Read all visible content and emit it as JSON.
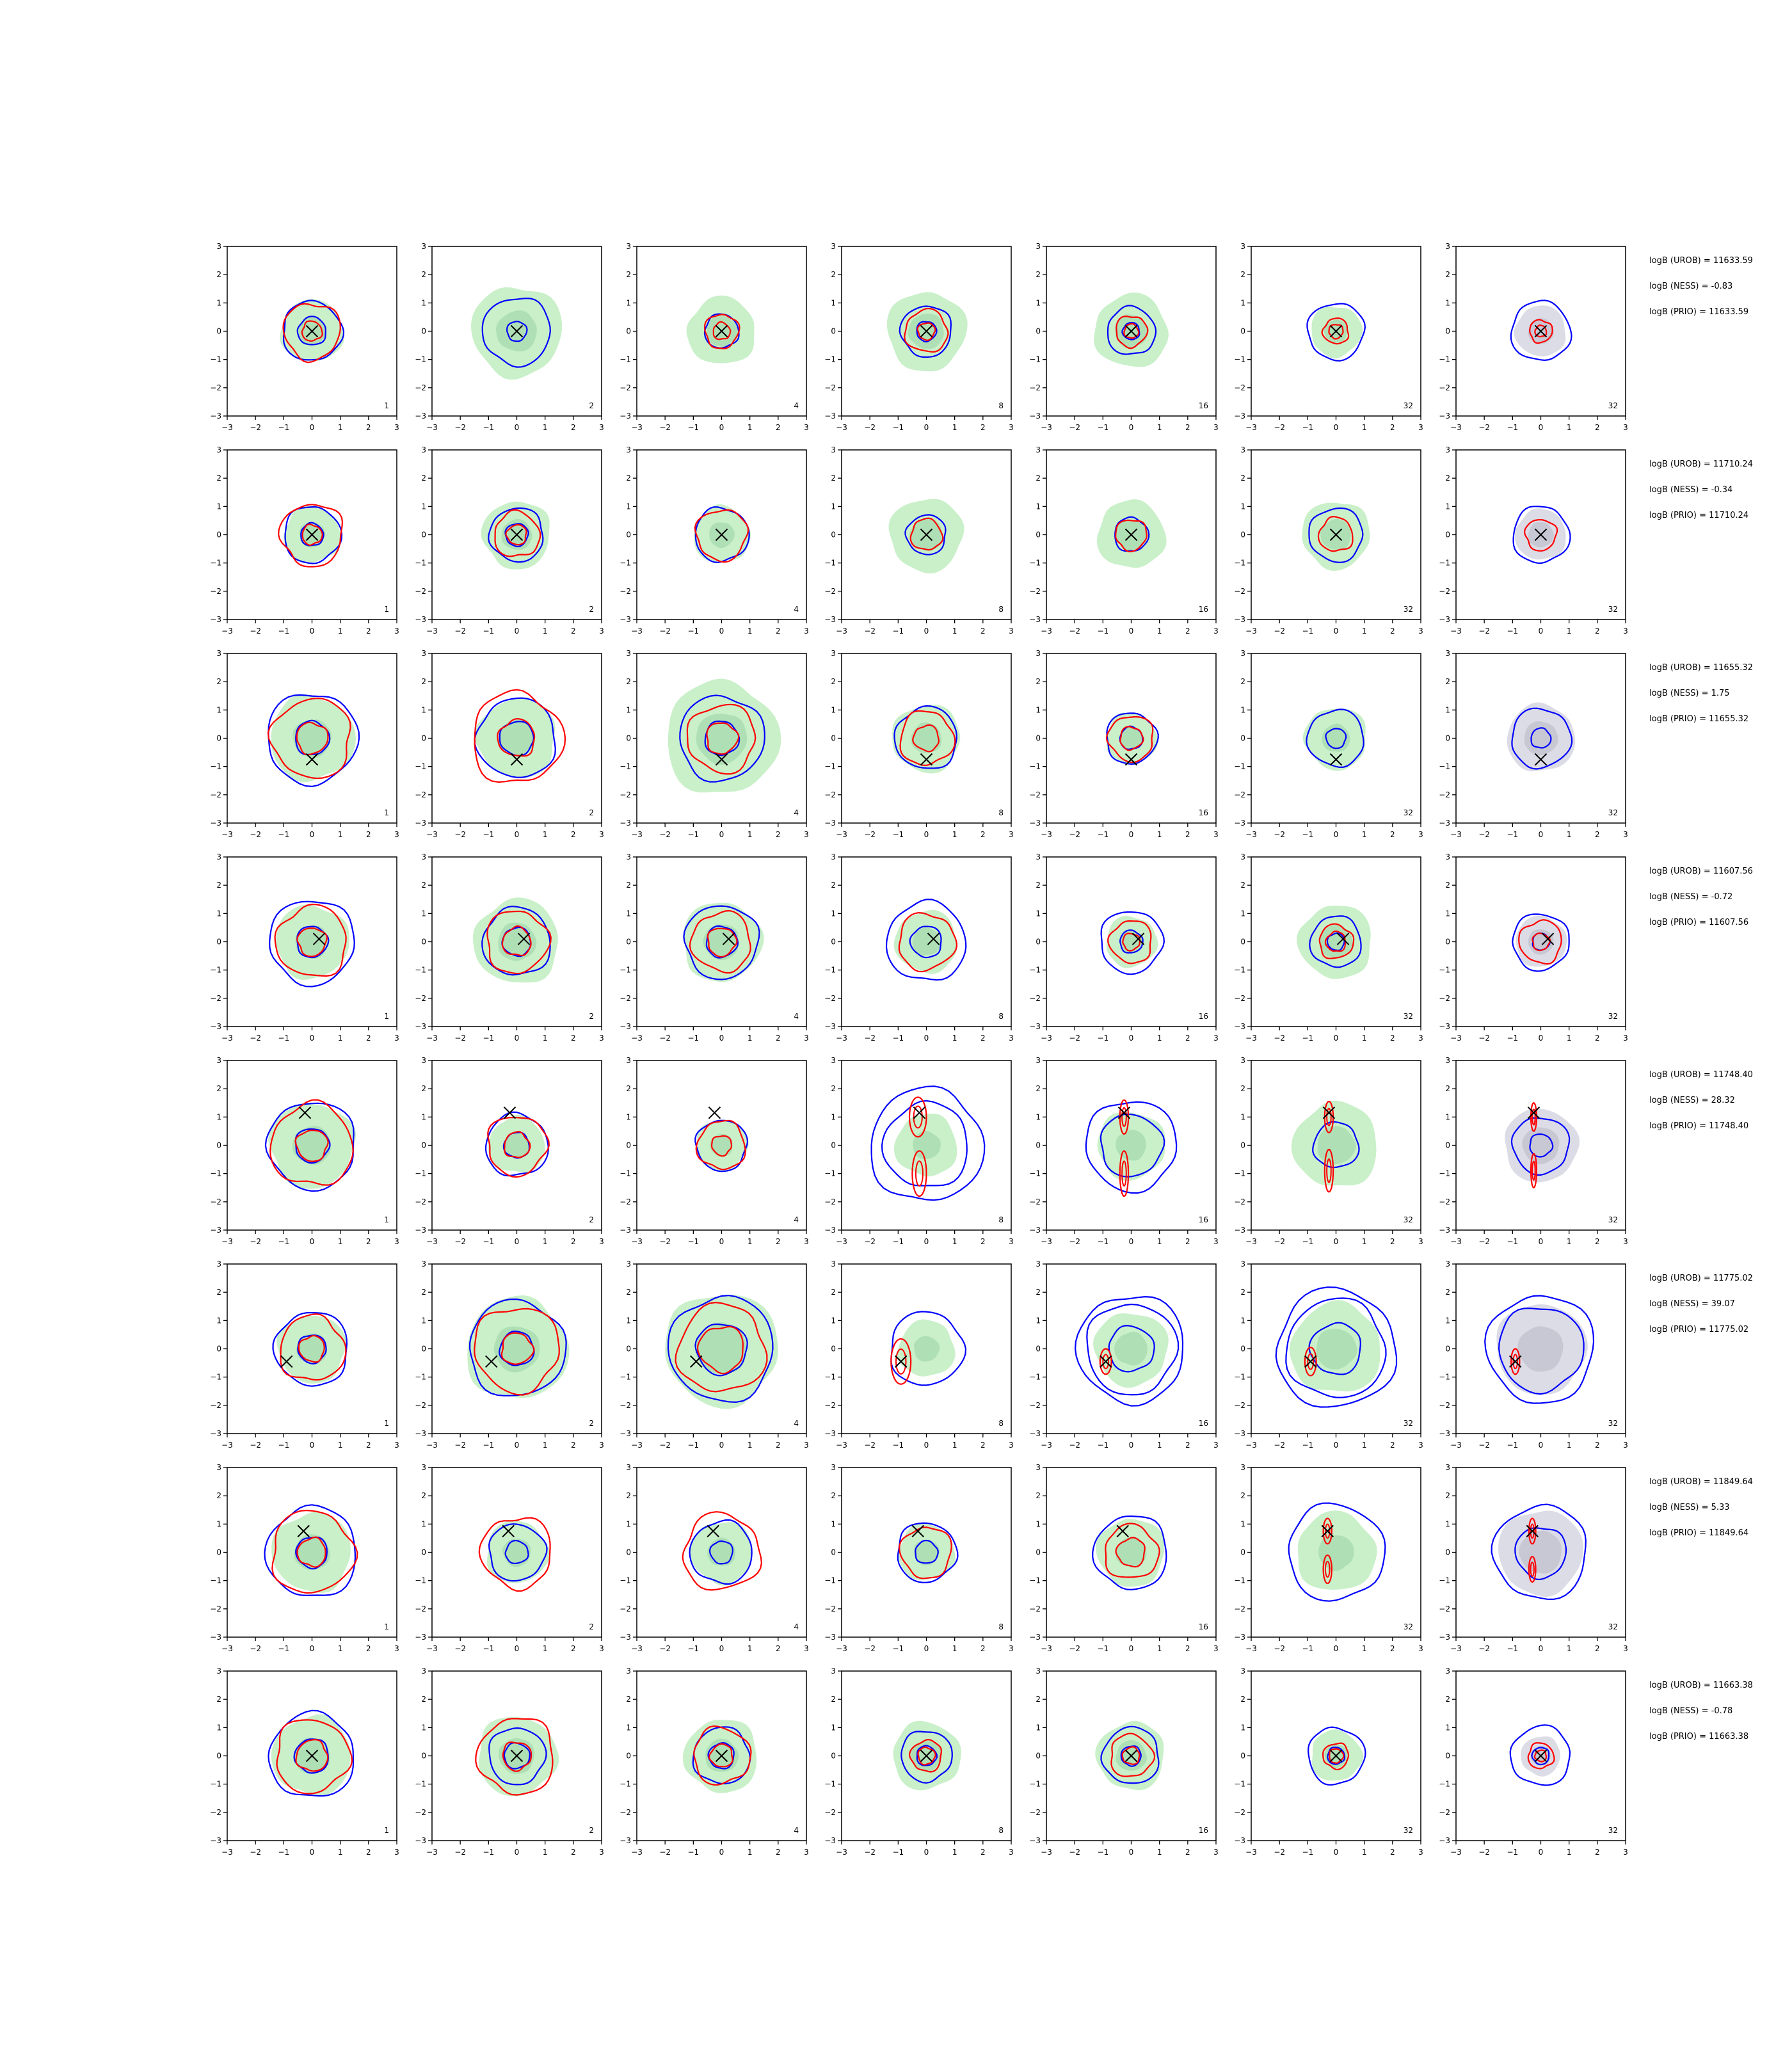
{
  "figure": {
    "axis": {
      "xlim": [
        -3,
        3
      ],
      "ylim": [
        -3,
        3
      ],
      "xticks": [
        "−3",
        "−2",
        "−1",
        "0",
        "1",
        "2",
        "3"
      ],
      "yticks": [
        "−3",
        "−2",
        "−1",
        "0",
        "1",
        "2",
        "3"
      ]
    },
    "colors": {
      "fill": "#c9f0c9",
      "fill_dark": "#9fd6a8",
      "gray_fill": "#dcdce6",
      "blue": "#0000ff",
      "red": "#ff0000",
      "marker": "#000000"
    },
    "panel_labels": [
      "1",
      "2",
      "4",
      "8",
      "16",
      "32",
      "32"
    ],
    "stat_labels": {
      "urob": "logB (UROB) = ",
      "ness": "logB (NESS) = ",
      "prio": "logB (PRIO) = "
    }
  },
  "chart_data": {
    "type": "contour-grid",
    "rows": [
      {
        "stats": {
          "urob": "11633.59",
          "ness": "-0.83",
          "prio": "11633.59"
        },
        "marker": [
          0,
          0
        ],
        "panels": [
          {
            "fill": 1.1,
            "blue": [
              1.05,
              0.5
            ],
            "red": [
              1.0,
              0.35
            ]
          },
          {
            "fill": 1.6,
            "blue": [
              1.2,
              0.35
            ],
            "red": []
          },
          {
            "fill": 1.2,
            "blue": [
              0.6
            ],
            "red": [
              0.6,
              0.3
            ]
          },
          {
            "fill": 1.4,
            "blue": [
              0.9,
              0.35
            ],
            "red": [
              0.75,
              0.3
            ]
          },
          {
            "fill": 1.3,
            "blue": [
              0.85,
              0.3
            ],
            "red": [
              0.55,
              0.25
            ]
          },
          {
            "fill": 0.9,
            "blue": [
              1.0
            ],
            "red": [
              0.45,
              0.25
            ]
          },
          {
            "gray": 0.9,
            "blue": [
              1.05
            ],
            "red": [
              0.4,
              0.2
            ]
          }
        ]
      },
      {
        "stats": {
          "urob": "11710.24",
          "ness": "-0.34",
          "prio": "11710.24"
        },
        "marker": [
          0,
          0
        ],
        "panels": [
          {
            "fill": 1.0,
            "blue": [
              1.0,
              0.4
            ],
            "red": [
              1.1,
              0.35
            ]
          },
          {
            "fill": 1.2,
            "blue": [
              0.95,
              0.4
            ],
            "red": [
              0.8,
              0.35
            ]
          },
          {
            "fill": 1.0,
            "blue": [
              0.95
            ],
            "red": [
              0.9
            ]
          },
          {
            "fill": 1.3,
            "blue": [
              0.7
            ],
            "red": [
              0.55
            ]
          },
          {
            "fill": 1.2,
            "blue": [
              0.6
            ],
            "red": [
              0.55
            ]
          },
          {
            "fill": 1.2,
            "blue": [
              0.95
            ],
            "red": [
              0.6
            ]
          },
          {
            "gray": 0.9,
            "blue": [
              1.0
            ],
            "red": [
              0.55
            ]
          }
        ]
      },
      {
        "stats": {
          "urob": "11655.32",
          "ness": "1.75",
          "prio": "11655.32"
        },
        "marker": [
          0,
          -0.75
        ],
        "panels": [
          {
            "fill": 1.5,
            "blue": [
              1.6,
              0.6
            ],
            "red": [
              1.4,
              0.55
            ]
          },
          {
            "fill": 1.4,
            "blue": [
              1.4,
              0.6
            ],
            "red": [
              1.6,
              0.65
            ]
          },
          {
            "fill": 2.0,
            "blue": [
              1.5,
              0.6
            ],
            "red": [
              1.2,
              0.55
            ]
          },
          {
            "fill": 1.2,
            "blue": [
              1.1
            ],
            "red": [
              0.95,
              0.45
            ]
          },
          {
            "fill": 0.9,
            "blue": [
              0.9,
              0.4
            ],
            "red": [
              0.8,
              0.4
            ]
          },
          {
            "fill": 1.1,
            "blue": [
              1.0,
              0.35
            ],
            "red": []
          },
          {
            "gray": 1.2,
            "blue": [
              1.05,
              0.35
            ],
            "red": []
          }
        ]
      },
      {
        "stats": {
          "urob": "11607.56",
          "ness": "-0.72",
          "prio": "11607.56"
        },
        "marker": [
          0.25,
          0.1
        ],
        "panels": [
          {
            "fill": 1.3,
            "blue": [
              1.5,
              0.55
            ],
            "red": [
              1.25,
              0.5
            ]
          },
          {
            "fill": 1.5,
            "blue": [
              1.2,
              0.5
            ],
            "red": [
              1.1,
              0.5
            ]
          },
          {
            "fill": 1.4,
            "blue": [
              1.3,
              0.55
            ],
            "red": [
              1.05,
              0.5
            ]
          },
          {
            "fill": 1.1,
            "blue": [
              1.4,
              0.55
            ],
            "red": [
              1.0
            ]
          },
          {
            "fill": 0.9,
            "blue": [
              1.1,
              0.4
            ],
            "red": [
              0.75,
              0.3
            ]
          },
          {
            "fill": 1.3,
            "blue": [
              0.9,
              0.3
            ],
            "red": [
              0.6,
              0.35
            ]
          },
          {
            "gray": 0.9,
            "blue": [
              1.0,
              0.3
            ],
            "red": [
              0.75,
              0.3
            ]
          }
        ]
      },
      {
        "stats": {
          "urob": "11748.40",
          "ness": "28.32",
          "prio": "11748.40"
        },
        "marker": [
          -0.25,
          1.15
        ],
        "panels": [
          {
            "fill": 1.5,
            "blue": [
              1.55,
              0.6
            ],
            "red": [
              1.45,
              0.55
            ]
          },
          {
            "fill": 1.0,
            "blue": [
              1.1,
              0.45
            ],
            "red": [
              1.05,
              0.45
            ]
          },
          {
            "fill": 0.9,
            "blue": [
              0.9
            ],
            "red": [
              0.85,
              0.35
            ]
          },
          {
            "fill": 1.1,
            "blue": [
              2.0,
              1.5
            ],
            "red": [],
            "ellipses": [
              [
                -0.3,
                1.0,
                0.3,
                0.7
              ],
              [
                -0.25,
                -1.0,
                0.25,
                0.8
              ]
            ]
          },
          {
            "fill": 1.2,
            "blue": [
              1.6,
              1.1
            ],
            "red": [],
            "ellipses": [
              [
                -0.25,
                1.0,
                0.15,
                0.6
              ],
              [
                -0.25,
                -1.0,
                0.15,
                0.8
              ]
            ]
          },
          {
            "fill": 1.5,
            "blue": [
              0.8
            ],
            "red": [],
            "ellipses": [
              [
                -0.25,
                1.0,
                0.15,
                0.55
              ],
              [
                -0.25,
                -0.9,
                0.15,
                0.75
              ]
            ]
          },
          {
            "gray": 1.3,
            "blue": [
              1.0,
              0.4
            ],
            "red": [],
            "ellipses": [
              [
                -0.25,
                1.0,
                0.1,
                0.5
              ],
              [
                -0.25,
                -0.9,
                0.1,
                0.6
              ]
            ]
          }
        ]
      },
      {
        "stats": {
          "urob": "11775.02",
          "ness": "39.07",
          "prio": "11775.02"
        },
        "marker": [
          -0.9,
          -0.45
        ],
        "panels": [
          {
            "fill": 1.2,
            "blue": [
              1.3,
              0.5
            ],
            "red": [
              1.15,
              0.45
            ]
          },
          {
            "fill": 1.8,
            "blue": [
              1.7,
              0.6
            ],
            "red": [
              1.5,
              0.55
            ]
          },
          {
            "fill": 2.0,
            "blue": [
              1.85,
              0.9
            ],
            "red": [
              1.55,
              0.8
            ]
          },
          {
            "fill": 1.0,
            "blue": [
              1.3
            ],
            "red": [],
            "ellipses": [
              [
                -0.9,
                -0.45,
                0.35,
                0.8
              ]
            ]
          },
          {
            "fill": 1.3,
            "blue": [
              1.9,
              1.6,
              0.8
            ],
            "red": [],
            "ellipses": [
              [
                -0.9,
                -0.45,
                0.2,
                0.45
              ]
            ]
          },
          {
            "fill": 1.6,
            "blue": [
              2.1,
              1.75,
              0.9
            ],
            "red": [],
            "ellipses": [
              [
                -0.9,
                -0.45,
                0.2,
                0.5
              ]
            ]
          },
          {
            "gray": 1.6,
            "blue": [
              1.9,
              1.5
            ],
            "red": [],
            "ellipses": [
              [
                -0.9,
                -0.45,
                0.15,
                0.45
              ]
            ]
          }
        ]
      },
      {
        "stats": {
          "urob": "11849.64",
          "ness": "5.33",
          "prio": "11849.64"
        },
        "marker": [
          -0.3,
          0.75
        ],
        "panels": [
          {
            "fill": 1.4,
            "blue": [
              1.6,
              0.55
            ],
            "red": [
              1.45,
              0.5
            ]
          },
          {
            "fill": 1.1,
            "blue": [
              1.0,
              0.4
            ],
            "red": [
              1.25
            ]
          },
          {
            "fill": 1.1,
            "blue": [
              1.1,
              0.4
            ],
            "red": [
              1.35
            ]
          },
          {
            "fill": 1.0,
            "blue": [
              1.05,
              0.4
            ],
            "red": [
              0.9
            ]
          },
          {
            "fill": 1.2,
            "blue": [
              1.3
            ],
            "red": [
              0.95,
              0.5
            ]
          },
          {
            "fill": 1.4,
            "blue": [
              1.7
            ],
            "red": [],
            "ellipses": [
              [
                -0.3,
                0.75,
                0.15,
                0.45
              ],
              [
                -0.3,
                -0.6,
                0.15,
                0.5
              ]
            ]
          },
          {
            "gray": 1.5,
            "blue": [
              1.65,
              0.9
            ],
            "red": [],
            "ellipses": [
              [
                -0.3,
                0.75,
                0.12,
                0.45
              ],
              [
                -0.3,
                -0.6,
                0.12,
                0.45
              ]
            ]
          }
        ]
      },
      {
        "stats": {
          "urob": "11663.38",
          "ness": "-0.78",
          "prio": "11663.38"
        },
        "marker": [
          0,
          0
        ],
        "panels": [
          {
            "fill": 1.4,
            "blue": [
              1.5,
              0.6
            ],
            "red": [
              1.3,
              0.55
            ]
          },
          {
            "fill": 1.4,
            "blue": [
              1.0,
              0.45
            ],
            "red": [
              1.35,
              0.5
            ]
          },
          {
            "fill": 1.3,
            "blue": [
              1.0,
              0.45
            ],
            "red": [
              1.0,
              0.4
            ]
          },
          {
            "fill": 1.2,
            "blue": [
              0.9,
              0.35
            ],
            "red": [
              0.55,
              0.3
            ]
          },
          {
            "fill": 1.2,
            "blue": [
              1.0,
              0.35
            ],
            "red": [
              0.75,
              0.3
            ]
          },
          {
            "fill": 0.9,
            "blue": [
              1.0,
              0.3
            ],
            "red": [
              0.45,
              0.25
            ]
          },
          {
            "gray": 0.7,
            "blue": [
              1.05,
              0.3
            ],
            "red": [
              0.45,
              0.2
            ]
          }
        ]
      }
    ]
  }
}
